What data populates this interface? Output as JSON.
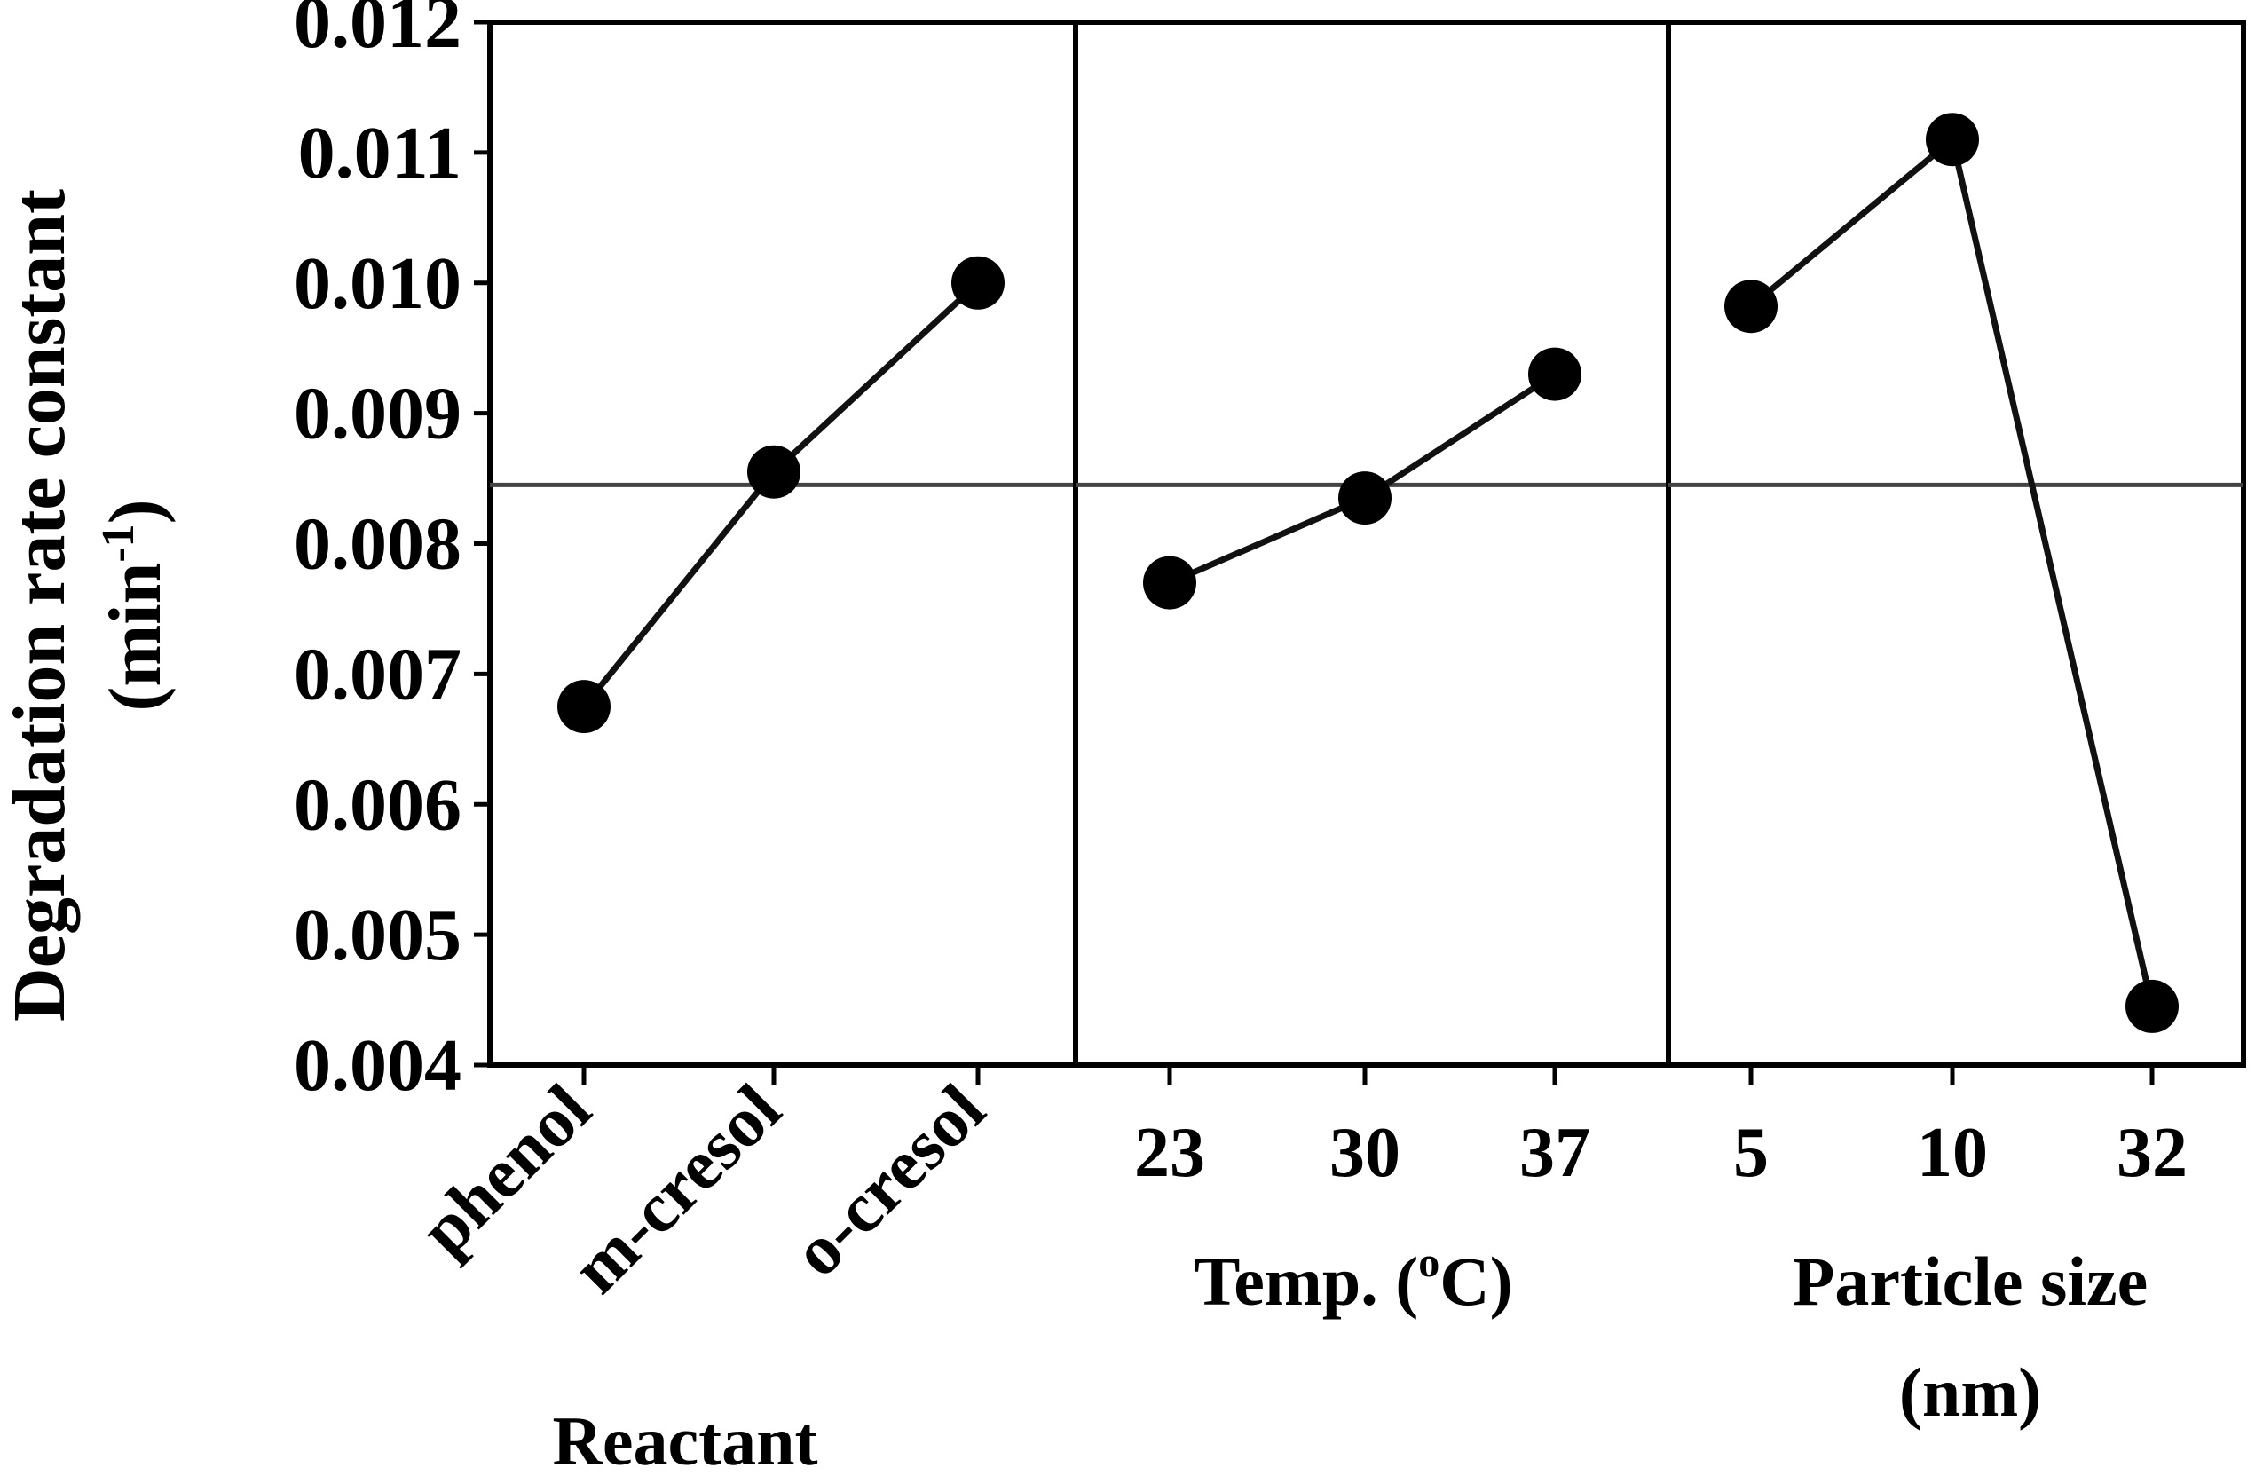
{
  "chart_data": {
    "type": "line",
    "title": "",
    "ylabel": "Degradation rate constant",
    "ylabel_unit_base": "(min",
    "ylabel_unit_sup": "-1",
    "ylabel_unit_end": ")",
    "ylim": [
      0.004,
      0.012
    ],
    "yticks": [
      "0.004",
      "0.005",
      "0.006",
      "0.007",
      "0.008",
      "0.009",
      "0.010",
      "0.011",
      "0.012"
    ],
    "mean_line": 0.00845,
    "panels": [
      {
        "factor": "Reactant",
        "xlabel": "Reactant",
        "categories": [
          "phenol",
          "m-cresol",
          "o-cresol"
        ],
        "values": [
          0.00675,
          0.00855,
          0.01
        ],
        "rotated_labels": true
      },
      {
        "factor": "Temperature",
        "xlabel_base": "Temp. (",
        "xlabel_sup": "o",
        "xlabel_end": "C)",
        "categories": [
          "23",
          "30",
          "37"
        ],
        "values": [
          0.0077,
          0.00835,
          0.0093
        ],
        "rotated_labels": false
      },
      {
        "factor": "Particle size",
        "xlabel_line1": "Particle size",
        "xlabel_line2": "(nm)",
        "categories": [
          "5",
          "10",
          "32"
        ],
        "values": [
          0.00982,
          0.0111,
          0.00445
        ],
        "rotated_labels": false
      }
    ],
    "colors": {
      "line": "#111111",
      "marker": "#000000",
      "mean_line": "#444444",
      "frame": "#000000"
    }
  }
}
